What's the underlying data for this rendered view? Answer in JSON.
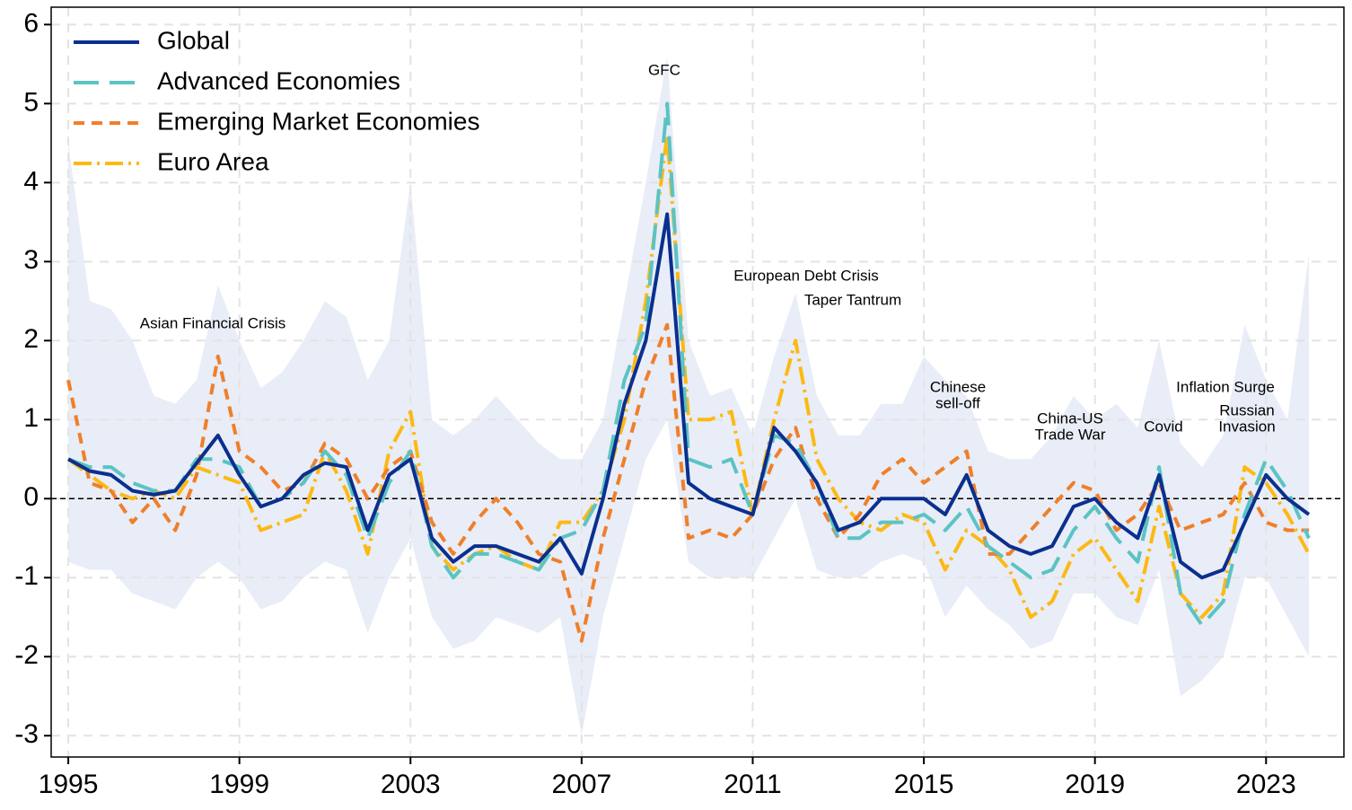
{
  "chart_data": {
    "type": "line",
    "x": [
      1995,
      1995.5,
      1996,
      1996.5,
      1997,
      1997.5,
      1998,
      1998.5,
      1999,
      1999.5,
      2000,
      2000.5,
      2001,
      2001.5,
      2002,
      2002.5,
      2003,
      2003.5,
      2004,
      2004.5,
      2005,
      2005.5,
      2006,
      2006.5,
      2007,
      2007.5,
      2008,
      2008.5,
      2009,
      2009.5,
      2010,
      2010.5,
      2011,
      2011.5,
      2012,
      2012.5,
      2013,
      2013.5,
      2014,
      2014.5,
      2015,
      2015.5,
      2016,
      2016.5,
      2017,
      2017.5,
      2018,
      2018.5,
      2019,
      2019.5,
      2020,
      2020.5,
      2021,
      2021.5,
      2022,
      2022.5,
      2023,
      2023.5,
      2024
    ],
    "band": {
      "color": "#e8edf7",
      "upper": [
        4.5,
        2.5,
        2.4,
        2.0,
        1.3,
        1.2,
        1.5,
        2.7,
        2.0,
        1.4,
        1.6,
        2.0,
        2.5,
        2.3,
        1.5,
        2.0,
        4.0,
        1.0,
        0.8,
        1.0,
        1.3,
        1.0,
        0.7,
        0.5,
        0.5,
        1.0,
        2.5,
        4.0,
        5.6,
        2.0,
        1.3,
        1.4,
        0.8,
        1.8,
        2.6,
        1.3,
        0.8,
        0.8,
        1.2,
        1.2,
        1.8,
        1.5,
        1.3,
        0.6,
        0.5,
        0.5,
        0.8,
        1.3,
        1.0,
        1.2,
        0.9,
        2.0,
        0.7,
        0.4,
        0.8,
        2.2,
        1.5,
        1.0,
        3.1
      ],
      "lower": [
        -0.8,
        -0.9,
        -0.9,
        -1.2,
        -1.3,
        -1.4,
        -1.0,
        -0.8,
        -1.0,
        -1.4,
        -1.3,
        -1.0,
        -0.8,
        -0.9,
        -1.7,
        -1.0,
        -0.5,
        -1.5,
        -1.9,
        -1.8,
        -1.5,
        -1.6,
        -1.7,
        -1.5,
        -3.0,
        -1.5,
        -0.5,
        0.5,
        1.0,
        -0.8,
        -1.0,
        -1.0,
        -1.0,
        -0.5,
        0.0,
        -0.9,
        -1.0,
        -1.0,
        -0.8,
        -0.7,
        -0.8,
        -1.5,
        -1.1,
        -1.4,
        -1.6,
        -1.9,
        -1.8,
        -1.2,
        -1.2,
        -1.5,
        -1.6,
        -0.9,
        -2.5,
        -2.3,
        -2.0,
        -1.0,
        -1.0,
        -1.5,
        -2.0
      ]
    },
    "series": [
      {
        "name": "Global",
        "color": "#0b2f8f",
        "dash": "none",
        "width": 4,
        "values": [
          0.5,
          0.35,
          0.3,
          0.1,
          0.05,
          0.1,
          0.45,
          0.8,
          0.3,
          -0.1,
          0.0,
          0.3,
          0.45,
          0.4,
          -0.4,
          0.3,
          0.5,
          -0.5,
          -0.8,
          -0.6,
          -0.6,
          -0.7,
          -0.8,
          -0.5,
          -0.95,
          0.0,
          1.2,
          2.0,
          3.6,
          0.2,
          0.0,
          -0.1,
          -0.2,
          0.9,
          0.6,
          0.2,
          -0.4,
          -0.3,
          0.0,
          0.0,
          0.0,
          -0.2,
          0.3,
          -0.4,
          -0.6,
          -0.7,
          -0.6,
          -0.1,
          0.0,
          -0.3,
          -0.5,
          0.3,
          -0.8,
          -1.0,
          -0.9,
          -0.3,
          0.3,
          0.0,
          -0.2
        ]
      },
      {
        "name": "Advanced Economies",
        "color": "#5bc3c3",
        "dash": "28 12",
        "width": 4,
        "values": [
          0.5,
          0.4,
          0.4,
          0.2,
          0.1,
          0.1,
          0.5,
          0.5,
          0.4,
          -0.1,
          0.0,
          0.2,
          0.6,
          0.3,
          -0.5,
          0.2,
          0.6,
          -0.6,
          -1.0,
          -0.7,
          -0.7,
          -0.8,
          -0.9,
          -0.5,
          -0.4,
          0.1,
          1.5,
          2.2,
          5.0,
          0.5,
          0.4,
          0.5,
          -0.2,
          0.8,
          0.7,
          0.2,
          -0.5,
          -0.5,
          -0.3,
          -0.3,
          -0.2,
          -0.4,
          -0.1,
          -0.6,
          -0.8,
          -1.0,
          -0.9,
          -0.4,
          -0.1,
          -0.5,
          -0.8,
          0.4,
          -1.2,
          -1.6,
          -1.3,
          -0.2,
          0.5,
          0.1,
          -0.5
        ]
      },
      {
        "name": "Emerging Market Economies",
        "color": "#f07f2a",
        "dash": "12 8",
        "width": 4,
        "values": [
          1.5,
          0.2,
          0.1,
          -0.3,
          0.0,
          -0.4,
          0.3,
          1.8,
          0.6,
          0.4,
          0.1,
          0.2,
          0.7,
          0.5,
          0.0,
          0.4,
          0.6,
          -0.3,
          -0.7,
          -0.3,
          0.0,
          -0.3,
          -0.7,
          -0.8,
          -1.8,
          -0.5,
          0.5,
          1.5,
          2.2,
          -0.5,
          -0.4,
          -0.5,
          -0.2,
          0.5,
          0.9,
          0.0,
          -0.5,
          -0.2,
          0.3,
          0.5,
          0.2,
          0.4,
          0.6,
          -0.7,
          -0.7,
          -0.4,
          -0.1,
          0.2,
          0.1,
          -0.4,
          -0.2,
          0.2,
          -0.4,
          -0.3,
          -0.2,
          0.2,
          -0.3,
          -0.4,
          -0.4
        ]
      },
      {
        "name": "Euro Area",
        "color": "#fdb913",
        "dash": "20 6 3 6",
        "width": 4,
        "values": [
          0.5,
          0.3,
          0.1,
          0.0,
          0.1,
          0.0,
          0.4,
          0.3,
          0.2,
          -0.4,
          -0.3,
          -0.2,
          0.6,
          0.1,
          -0.7,
          0.6,
          1.1,
          -0.6,
          -0.9,
          -0.7,
          -0.6,
          -0.8,
          -0.9,
          -0.3,
          -0.3,
          0.1,
          1.0,
          2.5,
          4.6,
          1.0,
          1.0,
          1.1,
          -0.2,
          1.0,
          2.0,
          0.5,
          0.0,
          -0.3,
          -0.4,
          -0.2,
          -0.3,
          -0.9,
          -0.4,
          -0.6,
          -0.9,
          -1.5,
          -1.3,
          -0.7,
          -0.5,
          -0.9,
          -1.3,
          -0.1,
          -1.2,
          -1.5,
          -1.2,
          0.4,
          0.2,
          -0.2,
          -0.7
        ]
      }
    ],
    "annotations": [
      [
        "Asian Financial Crisis"
      ],
      [
        "GFC"
      ],
      [
        "European Debt Crisis"
      ],
      [
        "Taper Tantrum"
      ],
      [
        "Chinese",
        "sell-off"
      ],
      [
        "China-US",
        "Trade War"
      ],
      [
        "Covid"
      ],
      [
        "Inflation Surge"
      ],
      [
        "Russian",
        "Invasion"
      ]
    ],
    "xlim": [
      1994.6,
      2024.82
    ],
    "xticks": [
      1995,
      1999,
      2003,
      2007,
      2011,
      2015,
      2019,
      2023
    ],
    "ylim": [
      -3.27,
      6.22
    ],
    "yticks": [
      -3,
      -2,
      -1,
      0,
      1,
      2,
      3,
      4,
      5,
      6
    ],
    "grid": true,
    "zero_line": true,
    "legend": "upper left"
  }
}
